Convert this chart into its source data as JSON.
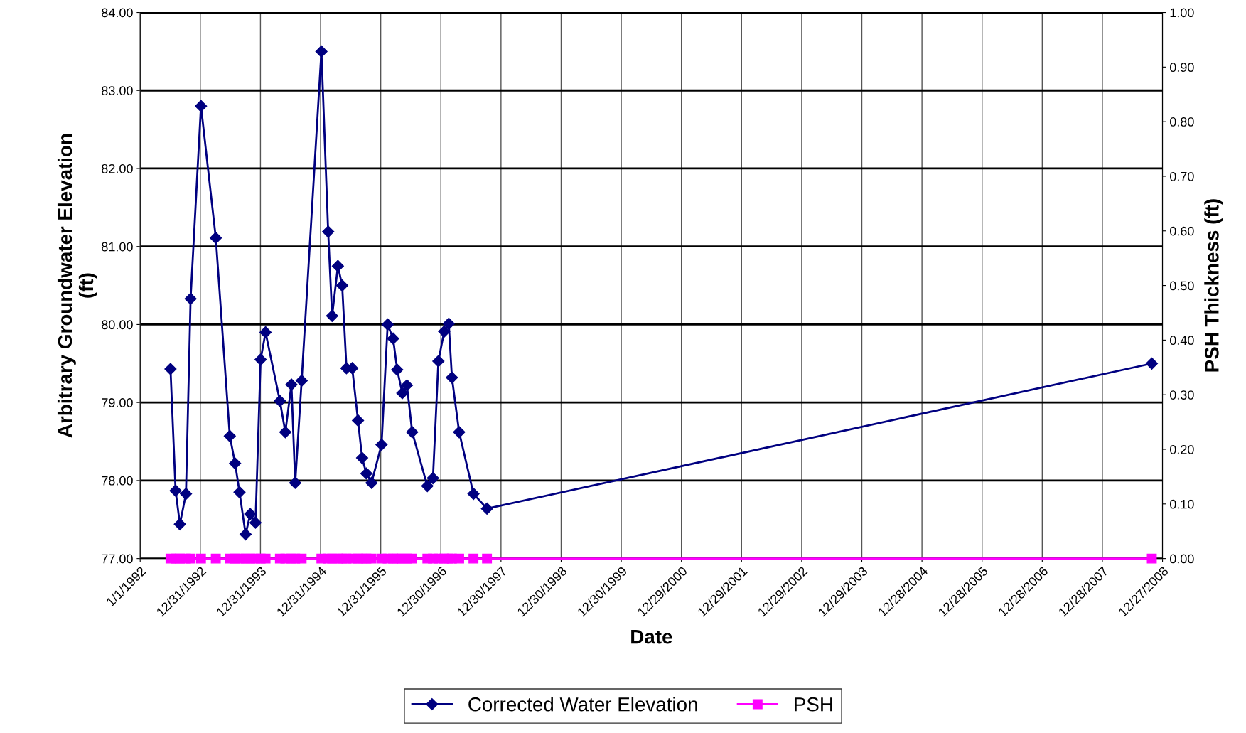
{
  "chart_data": {
    "type": "line",
    "xlabel": "Date",
    "ylabel": "Arbitrary Groundwater Elevation\n(ft)",
    "y2label": "PSH Thickness (ft)",
    "x": [
      "1992-07-03",
      "1992-08-03",
      "1992-08-29",
      "1992-10-05",
      "1992-11-02",
      "1993-01-04",
      "1993-04-04",
      "1993-06-28",
      "1993-07-30",
      "1993-08-26",
      "1993-10-02",
      "1993-10-30",
      "1993-12-01",
      "1994-01-01",
      "1994-01-31",
      "1994-04-28",
      "1994-05-31",
      "1994-07-07",
      "1994-07-30",
      "1994-09-07",
      "1995-01-05",
      "1995-02-15",
      "1995-03-11",
      "1995-04-15",
      "1995-05-11",
      "1995-06-06",
      "1995-07-11",
      "1995-08-15",
      "1995-09-09",
      "1995-10-05",
      "1995-11-05",
      "1996-01-05",
      "1996-02-11",
      "1996-03-15",
      "1996-04-09",
      "1996-05-10",
      "1996-06-07",
      "1996-07-09",
      "1996-10-09",
      "1996-11-12",
      "1996-12-15",
      "1997-01-19",
      "1997-02-16",
      "1997-03-07",
      "1997-04-20",
      "1997-07-16",
      "1997-10-06",
      "2008-10-23"
    ],
    "series": [
      {
        "name": "Corrected Water Elevation",
        "color": "#000080",
        "marker": "diamond",
        "values": [
          79.43,
          77.87,
          77.44,
          77.83,
          80.33,
          82.8,
          81.11,
          78.57,
          78.22,
          77.85,
          77.31,
          77.57,
          77.46,
          79.55,
          79.9,
          79.02,
          78.62,
          79.23,
          77.97,
          79.28,
          83.5,
          81.19,
          80.11,
          80.75,
          80.5,
          79.44,
          79.44,
          78.77,
          78.29,
          78.09,
          77.97,
          78.46,
          80.0,
          79.82,
          79.42,
          79.12,
          79.22,
          78.62,
          77.93,
          78.03,
          79.53,
          79.91,
          80.01,
          79.32,
          78.62,
          77.83,
          77.64,
          79.5
        ]
      },
      {
        "name": "PSH",
        "color": "#ff00ff",
        "marker": "square",
        "axis": "y2",
        "values": [
          0,
          0,
          0,
          0,
          0,
          0,
          0,
          0,
          0,
          0,
          0,
          0,
          0,
          0,
          0,
          0,
          0,
          0,
          0,
          0,
          0,
          0,
          0,
          0,
          0,
          0,
          0,
          0,
          0,
          0,
          0,
          0,
          0,
          0,
          0,
          0,
          0,
          0,
          0,
          0,
          0,
          0,
          0,
          0,
          0,
          0,
          0,
          0
        ]
      }
    ],
    "xlim": [
      "1992-01-01",
      "2008-12-27"
    ],
    "xticks": [
      {
        "value": "1992-01-01",
        "label": "1/1/1992"
      },
      {
        "value": "1992-12-31",
        "label": "12/31/1992"
      },
      {
        "value": "1993-12-31",
        "label": "12/31/1993"
      },
      {
        "value": "1994-12-31",
        "label": "12/31/1994"
      },
      {
        "value": "1995-12-31",
        "label": "12/31/1995"
      },
      {
        "value": "1996-12-30",
        "label": "12/30/1996"
      },
      {
        "value": "1997-12-30",
        "label": "12/30/1997"
      },
      {
        "value": "1998-12-30",
        "label": "12/30/1998"
      },
      {
        "value": "1999-12-30",
        "label": "12/30/1999"
      },
      {
        "value": "2000-12-29",
        "label": "12/29/2000"
      },
      {
        "value": "2001-12-29",
        "label": "12/29/2001"
      },
      {
        "value": "2002-12-29",
        "label": "12/29/2002"
      },
      {
        "value": "2003-12-29",
        "label": "12/29/2003"
      },
      {
        "value": "2004-12-28",
        "label": "12/28/2004"
      },
      {
        "value": "2005-12-28",
        "label": "12/28/2005"
      },
      {
        "value": "2006-12-28",
        "label": "12/28/2006"
      },
      {
        "value": "2007-12-28",
        "label": "12/28/2007"
      },
      {
        "value": "2008-12-27",
        "label": "12/27/2008"
      }
    ],
    "ylim": [
      77,
      84
    ],
    "yticks": [
      {
        "value": 77,
        "label": "77.00"
      },
      {
        "value": 78,
        "label": "78.00"
      },
      {
        "value": 79,
        "label": "79.00"
      },
      {
        "value": 80,
        "label": "80.00"
      },
      {
        "value": 81,
        "label": "81.00"
      },
      {
        "value": 82,
        "label": "82.00"
      },
      {
        "value": 83,
        "label": "83.00"
      },
      {
        "value": 84,
        "label": "84.00"
      }
    ],
    "y2lim": [
      0,
      1
    ],
    "y2ticks": [
      {
        "value": 0,
        "label": "0.00"
      },
      {
        "value": 0.1,
        "label": "0.10"
      },
      {
        "value": 0.2,
        "label": "0.20"
      },
      {
        "value": 0.3,
        "label": "0.30"
      },
      {
        "value": 0.4,
        "label": "0.40"
      },
      {
        "value": 0.5,
        "label": "0.50"
      },
      {
        "value": 0.6,
        "label": "0.60"
      },
      {
        "value": 0.7,
        "label": "0.70"
      },
      {
        "value": 0.8,
        "label": "0.80"
      },
      {
        "value": 0.9,
        "label": "0.90"
      },
      {
        "value": 1,
        "label": "1.00"
      }
    ],
    "grid": true,
    "legend": "bottom"
  }
}
